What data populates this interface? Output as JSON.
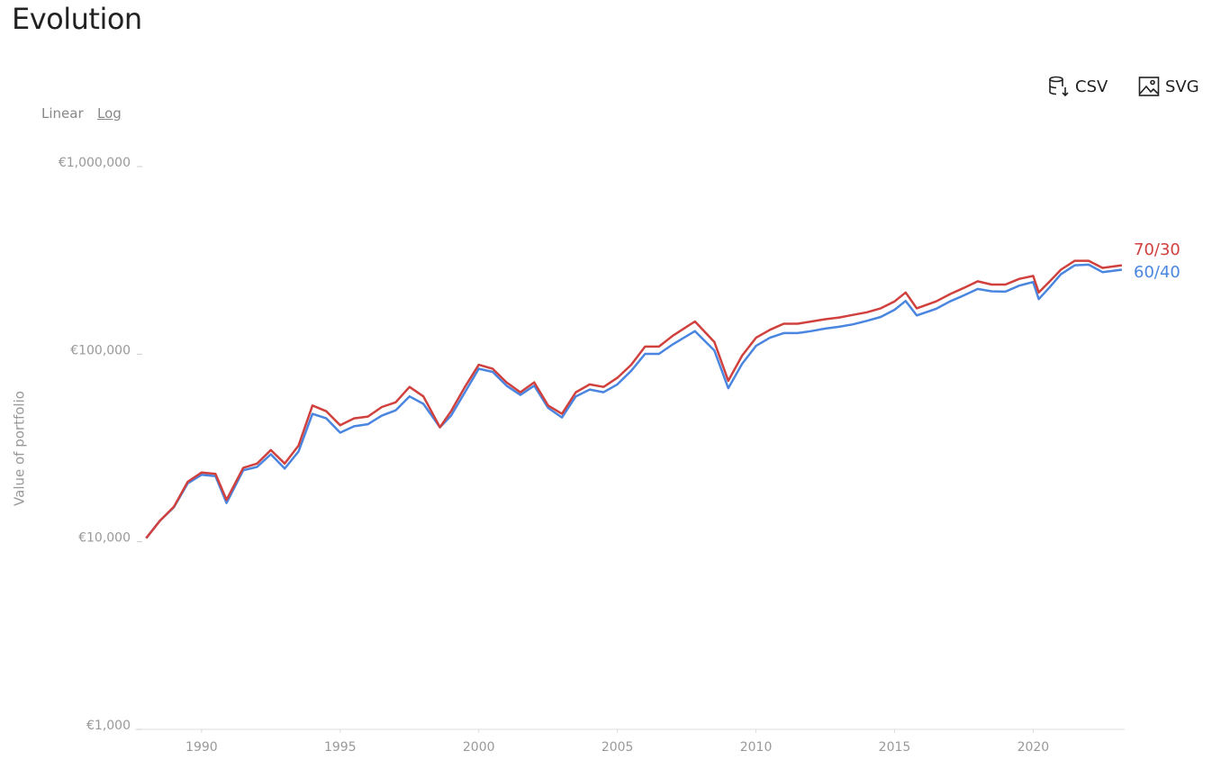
{
  "header": {
    "title": "Evolution"
  },
  "toolbar": {
    "buttons": [
      "CSV",
      "SVG"
    ]
  },
  "scale_options": [
    "Linear",
    "Log"
  ],
  "chart_data": {
    "type": "line",
    "y_label": "Value of portfolio",
    "log_scale": true,
    "xlim": [
      1987.6,
      2023.3
    ],
    "xticks": [
      1990,
      1995,
      2000,
      2005,
      2010,
      2015,
      2020
    ],
    "ylim": [
      1000,
      1000000
    ],
    "yticks": [
      {
        "value": 1000,
        "label": "€1,000"
      },
      {
        "value": 10000,
        "label": "€10,000"
      },
      {
        "value": 100000,
        "label": "€100,000"
      },
      {
        "value": 1000000,
        "label": "€1,000,000"
      }
    ],
    "x": [
      1988,
      1988.5,
      1989,
      1989.5,
      1990,
      1990.5,
      1990.9,
      1991.5,
      1992,
      1992.5,
      1993,
      1993.5,
      1994,
      1994.5,
      1995,
      1995.5,
      1996,
      1996.5,
      1997,
      1997.5,
      1998,
      1998.6,
      1999,
      1999.5,
      2000,
      2000.5,
      2001,
      2001.5,
      2002,
      2002.5,
      2003,
      2003.5,
      2004,
      2004.5,
      2005,
      2005.5,
      2006,
      2006.5,
      2007,
      2007.8,
      2008.5,
      2009,
      2009.5,
      2010,
      2010.5,
      2011,
      2011.5,
      2012,
      2012.5,
      2013,
      2013.5,
      2014,
      2014.5,
      2015,
      2015.4,
      2015.8,
      2016.5,
      2017,
      2017.5,
      2018,
      2018.5,
      2019,
      2019.5,
      2020,
      2020.2,
      2020.6,
      2021,
      2021.5,
      2022,
      2022.5,
      2023.2
    ],
    "series": [
      {
        "name": "70/30",
        "color": "#d0413e",
        "values": [
          10000,
          12400,
          14700,
          20000,
          22400,
          22000,
          16000,
          23700,
          25000,
          29500,
          25000,
          31200,
          51000,
          47500,
          40000,
          43500,
          44500,
          50000,
          53000,
          64000,
          57000,
          39000,
          47500,
          64000,
          84000,
          80000,
          67700,
          60000,
          67700,
          51000,
          46000,
          60000,
          66000,
          64000,
          71600,
          84000,
          105000,
          105000,
          120000,
          143000,
          111000,
          69000,
          94000,
          117000,
          129000,
          139000,
          139000,
          143000,
          147000,
          150000,
          155000,
          160000,
          168000,
          183000,
          204000,
          168000,
          183000,
          200000,
          216000,
          234000,
          225000,
          225000,
          241000,
          250000,
          204000,
          234000,
          270000,
          301000,
          301000,
          276000,
          285000
        ]
      },
      {
        "name": "60/40",
        "color": "#4a86e0",
        "values": [
          10000,
          12400,
          14600,
          19600,
          21800,
          21400,
          15400,
          23000,
          24000,
          28000,
          23500,
          29000,
          46000,
          43500,
          36500,
          39500,
          40500,
          45000,
          48000,
          57000,
          52000,
          39000,
          45000,
          60000,
          80000,
          77000,
          65000,
          58000,
          65000,
          49500,
          44000,
          57000,
          62000,
          60000,
          66000,
          78000,
          96000,
          96000,
          108000,
          127000,
          100000,
          63000,
          85000,
          106000,
          117000,
          124000,
          124000,
          127000,
          131000,
          134000,
          138000,
          144000,
          151000,
          165000,
          184000,
          154000,
          167000,
          183000,
          197000,
          213000,
          207000,
          206000,
          222000,
          232000,
          188000,
          218000,
          255000,
          285000,
          287000,
          262000,
          270000
        ]
      }
    ]
  }
}
